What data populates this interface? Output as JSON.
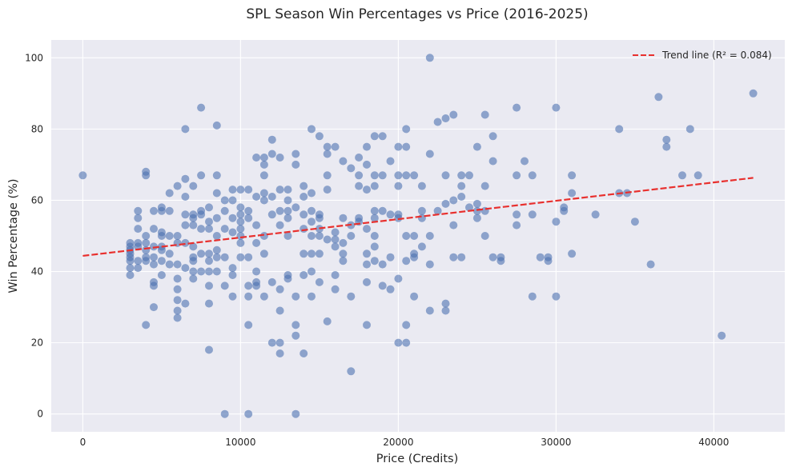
{
  "chart_data": {
    "type": "scatter",
    "title": "SPL Season Win Percentages vs Price (2016-2025)",
    "xlabel": "Price (Credits)",
    "ylabel": "Win Percentage (%)",
    "xlim": [
      -2000,
      44500
    ],
    "ylim": [
      -5,
      105
    ],
    "xticks": [
      0,
      10000,
      20000,
      30000,
      40000
    ],
    "yticks": [
      0,
      20,
      40,
      60,
      80,
      100
    ],
    "grid": true,
    "legend_position": "top-right",
    "trend_line": {
      "label": "Trend line (R² = 0.084)",
      "x": [
        0,
        42500
      ],
      "y": [
        44.4,
        66.3
      ]
    },
    "point_color": "#4c72b0",
    "trend_color": "#e8302e",
    "background_color": "#eaeaf2",
    "points": [
      [
        0,
        67
      ],
      [
        3000,
        39
      ],
      [
        3000,
        41
      ],
      [
        3000,
        43
      ],
      [
        3000,
        44
      ],
      [
        3000,
        45
      ],
      [
        3000,
        46
      ],
      [
        3000,
        47
      ],
      [
        3000,
        48
      ],
      [
        3500,
        41
      ],
      [
        3500,
        43
      ],
      [
        3500,
        47
      ],
      [
        3500,
        48
      ],
      [
        3500,
        52
      ],
      [
        3500,
        55
      ],
      [
        3500,
        57
      ],
      [
        4000,
        25
      ],
      [
        4000,
        43
      ],
      [
        4000,
        44
      ],
      [
        4000,
        46
      ],
      [
        4000,
        48
      ],
      [
        4000,
        50
      ],
      [
        4000,
        67
      ],
      [
        4000,
        68
      ],
      [
        4500,
        30
      ],
      [
        4500,
        36
      ],
      [
        4500,
        37
      ],
      [
        4500,
        42
      ],
      [
        4500,
        44
      ],
      [
        4500,
        47
      ],
      [
        4500,
        52
      ],
      [
        4500,
        57
      ],
      [
        5000,
        39
      ],
      [
        5000,
        43
      ],
      [
        5000,
        46
      ],
      [
        5000,
        47
      ],
      [
        5000,
        50
      ],
      [
        5000,
        51
      ],
      [
        5000,
        57
      ],
      [
        5000,
        58
      ],
      [
        5500,
        42
      ],
      [
        5500,
        45
      ],
      [
        5500,
        50
      ],
      [
        5500,
        57
      ],
      [
        5500,
        62
      ],
      [
        6000,
        27
      ],
      [
        6000,
        29
      ],
      [
        6000,
        32
      ],
      [
        6000,
        35
      ],
      [
        6000,
        38
      ],
      [
        6000,
        42
      ],
      [
        6000,
        48
      ],
      [
        6000,
        50
      ],
      [
        6000,
        64
      ],
      [
        6500,
        31
      ],
      [
        6500,
        41
      ],
      [
        6500,
        48
      ],
      [
        6500,
        53
      ],
      [
        6500,
        56
      ],
      [
        6500,
        61
      ],
      [
        6500,
        66
      ],
      [
        6500,
        80
      ],
      [
        7000,
        38
      ],
      [
        7000,
        40
      ],
      [
        7000,
        43
      ],
      [
        7000,
        44
      ],
      [
        7000,
        47
      ],
      [
        7000,
        53
      ],
      [
        7000,
        55
      ],
      [
        7000,
        56
      ],
      [
        7000,
        64
      ],
      [
        7500,
        40
      ],
      [
        7500,
        45
      ],
      [
        7500,
        52
      ],
      [
        7500,
        56
      ],
      [
        7500,
        57
      ],
      [
        7500,
        67
      ],
      [
        7500,
        86
      ],
      [
        8000,
        18
      ],
      [
        8000,
        31
      ],
      [
        8000,
        36
      ],
      [
        8000,
        40
      ],
      [
        8000,
        43
      ],
      [
        8000,
        45
      ],
      [
        8000,
        52
      ],
      [
        8000,
        54
      ],
      [
        8000,
        58
      ],
      [
        8500,
        40
      ],
      [
        8500,
        44
      ],
      [
        8500,
        46
      ],
      [
        8500,
        50
      ],
      [
        8500,
        55
      ],
      [
        8500,
        62
      ],
      [
        8500,
        67
      ],
      [
        8500,
        81
      ],
      [
        9000,
        0
      ],
      [
        9000,
        36
      ],
      [
        9000,
        44
      ],
      [
        9000,
        52
      ],
      [
        9000,
        57
      ],
      [
        9000,
        60
      ],
      [
        9500,
        33
      ],
      [
        9500,
        39
      ],
      [
        9500,
        41
      ],
      [
        9500,
        51
      ],
      [
        9500,
        55
      ],
      [
        9500,
        60
      ],
      [
        9500,
        63
      ],
      [
        10000,
        44
      ],
      [
        10000,
        48
      ],
      [
        10000,
        50
      ],
      [
        10000,
        52
      ],
      [
        10000,
        54
      ],
      [
        10000,
        56
      ],
      [
        10000,
        58
      ],
      [
        10000,
        63
      ],
      [
        10500,
        0
      ],
      [
        10500,
        25
      ],
      [
        10500,
        33
      ],
      [
        10500,
        36
      ],
      [
        10500,
        44
      ],
      [
        10500,
        55
      ],
      [
        10500,
        57
      ],
      [
        10500,
        63
      ],
      [
        11000,
        36
      ],
      [
        11000,
        37
      ],
      [
        11000,
        40
      ],
      [
        11000,
        48
      ],
      [
        11000,
        53
      ],
      [
        11000,
        61
      ],
      [
        11000,
        72
      ],
      [
        11500,
        33
      ],
      [
        11500,
        45
      ],
      [
        11500,
        50
      ],
      [
        11500,
        60
      ],
      [
        11500,
        62
      ],
      [
        11500,
        67
      ],
      [
        11500,
        70
      ],
      [
        11500,
        72
      ],
      [
        12000,
        20
      ],
      [
        12000,
        37
      ],
      [
        12000,
        56
      ],
      [
        12000,
        61
      ],
      [
        12000,
        73
      ],
      [
        12000,
        77
      ],
      [
        12500,
        17
      ],
      [
        12500,
        20
      ],
      [
        12500,
        29
      ],
      [
        12500,
        35
      ],
      [
        12500,
        53
      ],
      [
        12500,
        57
      ],
      [
        12500,
        63
      ],
      [
        12500,
        72
      ],
      [
        13000,
        38
      ],
      [
        13000,
        39
      ],
      [
        13000,
        50
      ],
      [
        13000,
        55
      ],
      [
        13000,
        57
      ],
      [
        13000,
        60
      ],
      [
        13000,
        63
      ],
      [
        13500,
        0
      ],
      [
        13500,
        22
      ],
      [
        13500,
        25
      ],
      [
        13500,
        33
      ],
      [
        13500,
        58
      ],
      [
        13500,
        70
      ],
      [
        13500,
        73
      ],
      [
        14000,
        17
      ],
      [
        14000,
        39
      ],
      [
        14000,
        45
      ],
      [
        14000,
        52
      ],
      [
        14000,
        56
      ],
      [
        14000,
        61
      ],
      [
        14000,
        64
      ],
      [
        14500,
        33
      ],
      [
        14500,
        40
      ],
      [
        14500,
        45
      ],
      [
        14500,
        50
      ],
      [
        14500,
        54
      ],
      [
        14500,
        57
      ],
      [
        14500,
        62
      ],
      [
        14500,
        80
      ],
      [
        15000,
        37
      ],
      [
        15000,
        45
      ],
      [
        15000,
        50
      ],
      [
        15000,
        52
      ],
      [
        15000,
        55
      ],
      [
        15000,
        56
      ],
      [
        15000,
        78
      ],
      [
        15500,
        26
      ],
      [
        15500,
        49
      ],
      [
        15500,
        63
      ],
      [
        15500,
        67
      ],
      [
        15500,
        73
      ],
      [
        15500,
        75
      ],
      [
        16000,
        35
      ],
      [
        16000,
        39
      ],
      [
        16000,
        47
      ],
      [
        16000,
        49
      ],
      [
        16000,
        51
      ],
      [
        16000,
        75
      ],
      [
        16500,
        43
      ],
      [
        16500,
        45
      ],
      [
        16500,
        48
      ],
      [
        16500,
        55
      ],
      [
        16500,
        71
      ],
      [
        17000,
        12
      ],
      [
        17000,
        33
      ],
      [
        17000,
        50
      ],
      [
        17000,
        53
      ],
      [
        17000,
        69
      ],
      [
        17500,
        54
      ],
      [
        17500,
        55
      ],
      [
        17500,
        64
      ],
      [
        17500,
        67
      ],
      [
        17500,
        72
      ],
      [
        18000,
        25
      ],
      [
        18000,
        37
      ],
      [
        18000,
        42
      ],
      [
        18000,
        45
      ],
      [
        18000,
        52
      ],
      [
        18000,
        63
      ],
      [
        18000,
        70
      ],
      [
        18000,
        75
      ],
      [
        18500,
        43
      ],
      [
        18500,
        47
      ],
      [
        18500,
        50
      ],
      [
        18500,
        55
      ],
      [
        18500,
        57
      ],
      [
        18500,
        64
      ],
      [
        18500,
        67
      ],
      [
        18500,
        78
      ],
      [
        19000,
        36
      ],
      [
        19000,
        42
      ],
      [
        19000,
        57
      ],
      [
        19000,
        67
      ],
      [
        19000,
        78
      ],
      [
        19500,
        35
      ],
      [
        19500,
        44
      ],
      [
        19500,
        56
      ],
      [
        19500,
        71
      ],
      [
        20000,
        20
      ],
      [
        20000,
        38
      ],
      [
        20000,
        55
      ],
      [
        20000,
        56
      ],
      [
        20000,
        64
      ],
      [
        20000,
        67
      ],
      [
        20000,
        75
      ],
      [
        20500,
        20
      ],
      [
        20500,
        25
      ],
      [
        20500,
        43
      ],
      [
        20500,
        50
      ],
      [
        20500,
        67
      ],
      [
        20500,
        75
      ],
      [
        20500,
        80
      ],
      [
        21000,
        33
      ],
      [
        21000,
        44
      ],
      [
        21000,
        45
      ],
      [
        21000,
        50
      ],
      [
        21000,
        67
      ],
      [
        21500,
        47
      ],
      [
        21500,
        55
      ],
      [
        21500,
        57
      ],
      [
        21500,
        64
      ],
      [
        22000,
        29
      ],
      [
        22000,
        42
      ],
      [
        22000,
        50
      ],
      [
        22000,
        73
      ],
      [
        22000,
        100
      ],
      [
        22500,
        57
      ],
      [
        22500,
        82
      ],
      [
        23000,
        29
      ],
      [
        23000,
        31
      ],
      [
        23000,
        59
      ],
      [
        23000,
        67
      ],
      [
        23000,
        83
      ],
      [
        23500,
        44
      ],
      [
        23500,
        53
      ],
      [
        23500,
        60
      ],
      [
        23500,
        84
      ],
      [
        24000,
        44
      ],
      [
        24000,
        61
      ],
      [
        24000,
        64
      ],
      [
        24000,
        67
      ],
      [
        24500,
        58
      ],
      [
        24500,
        67
      ],
      [
        25000,
        55
      ],
      [
        25000,
        57
      ],
      [
        25000,
        59
      ],
      [
        25000,
        75
      ],
      [
        25500,
        50
      ],
      [
        25500,
        57
      ],
      [
        25500,
        64
      ],
      [
        25500,
        84
      ],
      [
        26000,
        44
      ],
      [
        26000,
        71
      ],
      [
        26000,
        78
      ],
      [
        26500,
        43
      ],
      [
        26500,
        44
      ],
      [
        27500,
        53
      ],
      [
        27500,
        56
      ],
      [
        27500,
        67
      ],
      [
        27500,
        86
      ],
      [
        28000,
        71
      ],
      [
        28500,
        33
      ],
      [
        28500,
        56
      ],
      [
        28500,
        67
      ],
      [
        29000,
        44
      ],
      [
        29500,
        43
      ],
      [
        29500,
        44
      ],
      [
        30000,
        33
      ],
      [
        30000,
        54
      ],
      [
        30000,
        86
      ],
      [
        30500,
        57
      ],
      [
        30500,
        58
      ],
      [
        31000,
        45
      ],
      [
        31000,
        62
      ],
      [
        31000,
        67
      ],
      [
        32500,
        56
      ],
      [
        34000,
        62
      ],
      [
        34000,
        80
      ],
      [
        34500,
        62
      ],
      [
        35000,
        54
      ],
      [
        36000,
        42
      ],
      [
        36500,
        89
      ],
      [
        37000,
        75
      ],
      [
        37000,
        77
      ],
      [
        38000,
        67
      ],
      [
        38500,
        80
      ],
      [
        39000,
        67
      ],
      [
        40500,
        22
      ],
      [
        42500,
        90
      ]
    ]
  }
}
